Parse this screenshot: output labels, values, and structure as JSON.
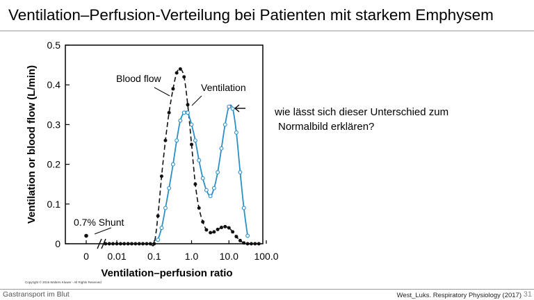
{
  "slide": {
    "title": "Ventilation–Perfusion-Verteilung bei Patienten mit starkem Emphysem",
    "note_line1": "wie lässt sich dieser Unterschied zum",
    "note_line2": "Normalbild erklären?",
    "footer_left": "Gastransport im Blut",
    "footer_right": "West_Luks. Respiratory Physiology (2017)",
    "page_number": "31",
    "copyright": "Copyright © 2016 Wolters Kluwer - All Rights Reserved"
  },
  "colors": {
    "blood_flow": "#111111",
    "ventilation": "#2b8fc6"
  },
  "chart_data": {
    "type": "line",
    "x_scale": "log",
    "xlabel": "Ventilation–perfusion ratio",
    "ylabel": "Ventilation or blood flow (L/min)",
    "ylim": [
      0,
      0.5
    ],
    "yticks": [
      {
        "value": 0,
        "label": "0"
      },
      {
        "value": 0.1,
        "label": "0.1"
      },
      {
        "value": 0.2,
        "label": "0.2"
      },
      {
        "value": 0.3,
        "label": "0.3"
      },
      {
        "value": 0.4,
        "label": "0.4"
      },
      {
        "value": 0.5,
        "label": "0.5"
      }
    ],
    "xticks": [
      {
        "value": 0,
        "label": "0"
      },
      {
        "value": 0.01,
        "label": "0.01"
      },
      {
        "value": 0.1,
        "label": "0.1"
      },
      {
        "value": 1.0,
        "label": "1.0"
      },
      {
        "value": 10.0,
        "label": "10.0"
      },
      {
        "value": 100.0,
        "label": "100.0"
      }
    ],
    "annotations": [
      {
        "text": "Blood flow"
      },
      {
        "text": "Ventilation"
      },
      {
        "text": "0.7% Shunt"
      }
    ],
    "shunt_point": {
      "x": 0,
      "y": 0.02
    },
    "series": [
      {
        "name": "Blood flow",
        "points": [
          [
            0.005,
            0
          ],
          [
            0.0063,
            0
          ],
          [
            0.0079,
            0
          ],
          [
            0.01,
            0
          ],
          [
            0.0126,
            0
          ],
          [
            0.0158,
            0
          ],
          [
            0.02,
            0
          ],
          [
            0.0251,
            0
          ],
          [
            0.0316,
            0
          ],
          [
            0.0398,
            0
          ],
          [
            0.05,
            0
          ],
          [
            0.063,
            0
          ],
          [
            0.079,
            0
          ],
          [
            0.1,
            0
          ],
          [
            0.126,
            0.07
          ],
          [
            0.158,
            0.17
          ],
          [
            0.2,
            0.26
          ],
          [
            0.25,
            0.33
          ],
          [
            0.32,
            0.39
          ],
          [
            0.4,
            0.43
          ],
          [
            0.5,
            0.44
          ],
          [
            0.63,
            0.42
          ],
          [
            0.79,
            0.35
          ],
          [
            1.0,
            0.25
          ],
          [
            1.26,
            0.15
          ],
          [
            1.58,
            0.09
          ],
          [
            2.0,
            0.055
          ],
          [
            2.5,
            0.035
          ],
          [
            3.2,
            0.028
          ],
          [
            4.0,
            0.03
          ],
          [
            5.0,
            0.036
          ],
          [
            6.3,
            0.041
          ],
          [
            7.9,
            0.043
          ],
          [
            10.0,
            0.04
          ],
          [
            12.6,
            0.03
          ],
          [
            15.8,
            0.018
          ],
          [
            20.0,
            0.008
          ],
          [
            25.1,
            0.002
          ],
          [
            31.6,
            0
          ],
          [
            39.8,
            0
          ],
          [
            50.1,
            0
          ],
          [
            63.1,
            0
          ]
        ]
      },
      {
        "name": "Ventilation",
        "points": [
          [
            0.126,
            0.01
          ],
          [
            0.158,
            0.04
          ],
          [
            0.2,
            0.09
          ],
          [
            0.25,
            0.14
          ],
          [
            0.32,
            0.2
          ],
          [
            0.4,
            0.26
          ],
          [
            0.5,
            0.31
          ],
          [
            0.63,
            0.33
          ],
          [
            0.79,
            0.33
          ],
          [
            1.0,
            0.3
          ],
          [
            1.26,
            0.26
          ],
          [
            1.58,
            0.21
          ],
          [
            2.0,
            0.165
          ],
          [
            2.5,
            0.135
          ],
          [
            3.2,
            0.12
          ],
          [
            4.0,
            0.14
          ],
          [
            5.0,
            0.18
          ],
          [
            6.3,
            0.24
          ],
          [
            7.9,
            0.3
          ],
          [
            10.0,
            0.345
          ],
          [
            12.6,
            0.34
          ],
          [
            15.8,
            0.28
          ],
          [
            20.0,
            0.18
          ],
          [
            25.1,
            0.09
          ],
          [
            31.6,
            0.02
          ]
        ]
      }
    ]
  }
}
